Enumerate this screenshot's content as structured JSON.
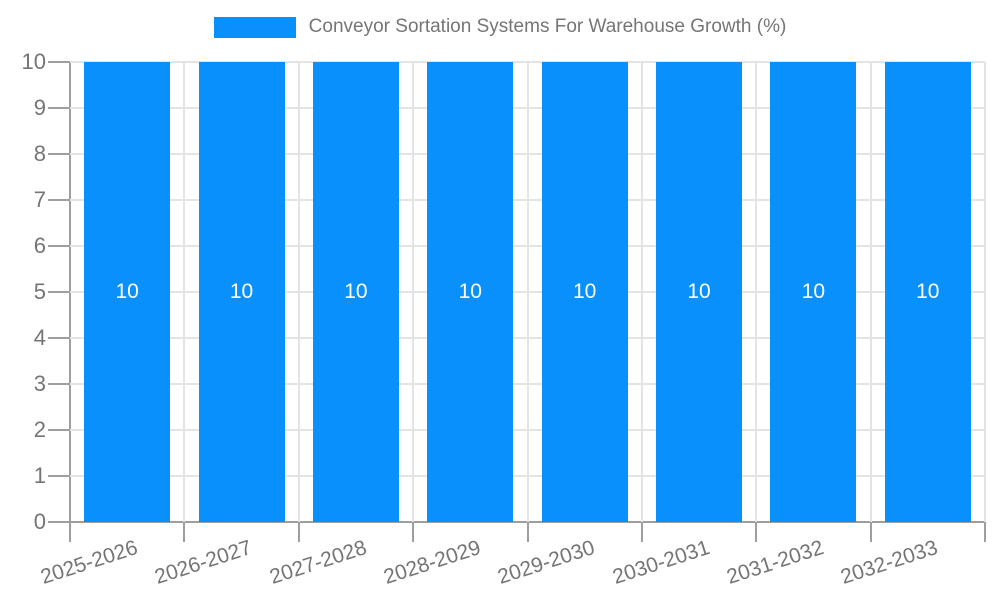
{
  "chart_data": {
    "type": "bar",
    "title": "Conveyor Sortation Systems For Warehouse Growth (%)",
    "categories": [
      "2025-2026",
      "2026-2027",
      "2027-2028",
      "2028-2029",
      "2029-2030",
      "2030-2031",
      "2031-2032",
      "2032-2033"
    ],
    "series": [
      {
        "name": "Conveyor Sortation Systems For Warehouse Growth (%)",
        "values": [
          10,
          10,
          10,
          10,
          10,
          10,
          10,
          10
        ]
      }
    ],
    "bar_labels": [
      "10",
      "10",
      "10",
      "10",
      "10",
      "10",
      "10",
      "10"
    ],
    "xlabel": "",
    "ylabel": "",
    "ylim": [
      0,
      10
    ],
    "ytick_labels": [
      "0",
      "1",
      "2",
      "3",
      "4",
      "5",
      "6",
      "7",
      "8",
      "9",
      "10"
    ],
    "grid": "on",
    "legend_position": "top-center",
    "x_label_rotation_deg": -18
  },
  "colors": {
    "bar": "#0a90fa",
    "bar_value_label": "#ffffff",
    "grid": "#e4e4e4",
    "axis": "#9e9e9e",
    "tick_label": "#757575",
    "background": "#ffffff"
  }
}
